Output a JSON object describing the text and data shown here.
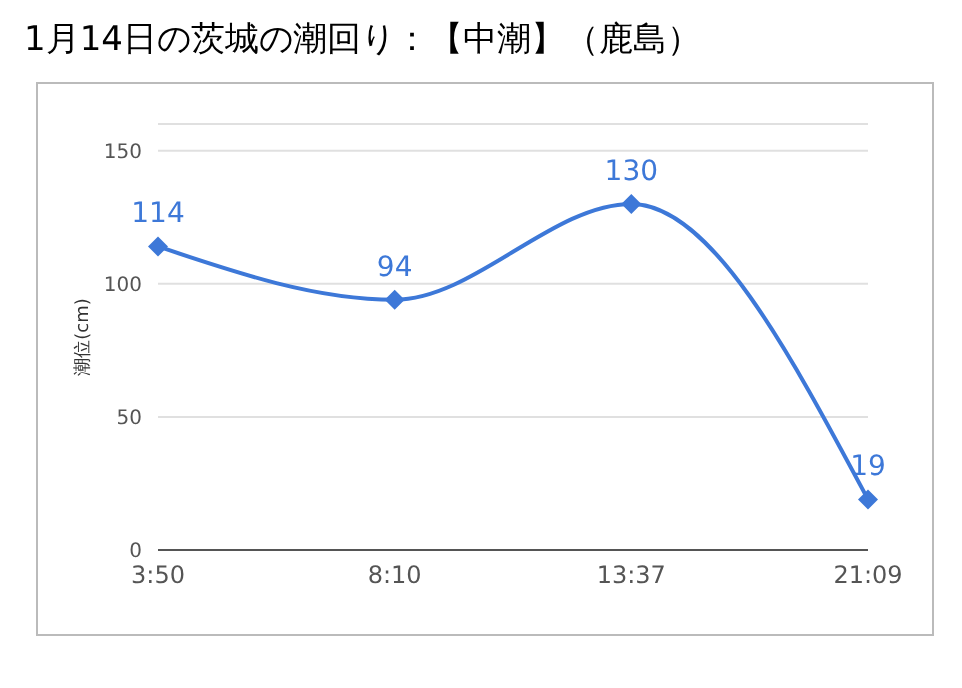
{
  "chart_data": {
    "type": "line",
    "title": "1月14日の茨城の潮回り：【中潮】（鹿島）",
    "ylabel": "潮位(cm)",
    "categories": [
      "3:50",
      "8:10",
      "13:37",
      "21:09"
    ],
    "series": [
      {
        "color": "#3d78d8",
        "values": [
          114,
          94,
          130,
          19
        ]
      }
    ],
    "ylim": [
      0,
      160
    ],
    "yticks": [
      0,
      50,
      100,
      150
    ],
    "grid": "y",
    "legend": false,
    "marker": "diamond",
    "data_labels": true
  }
}
